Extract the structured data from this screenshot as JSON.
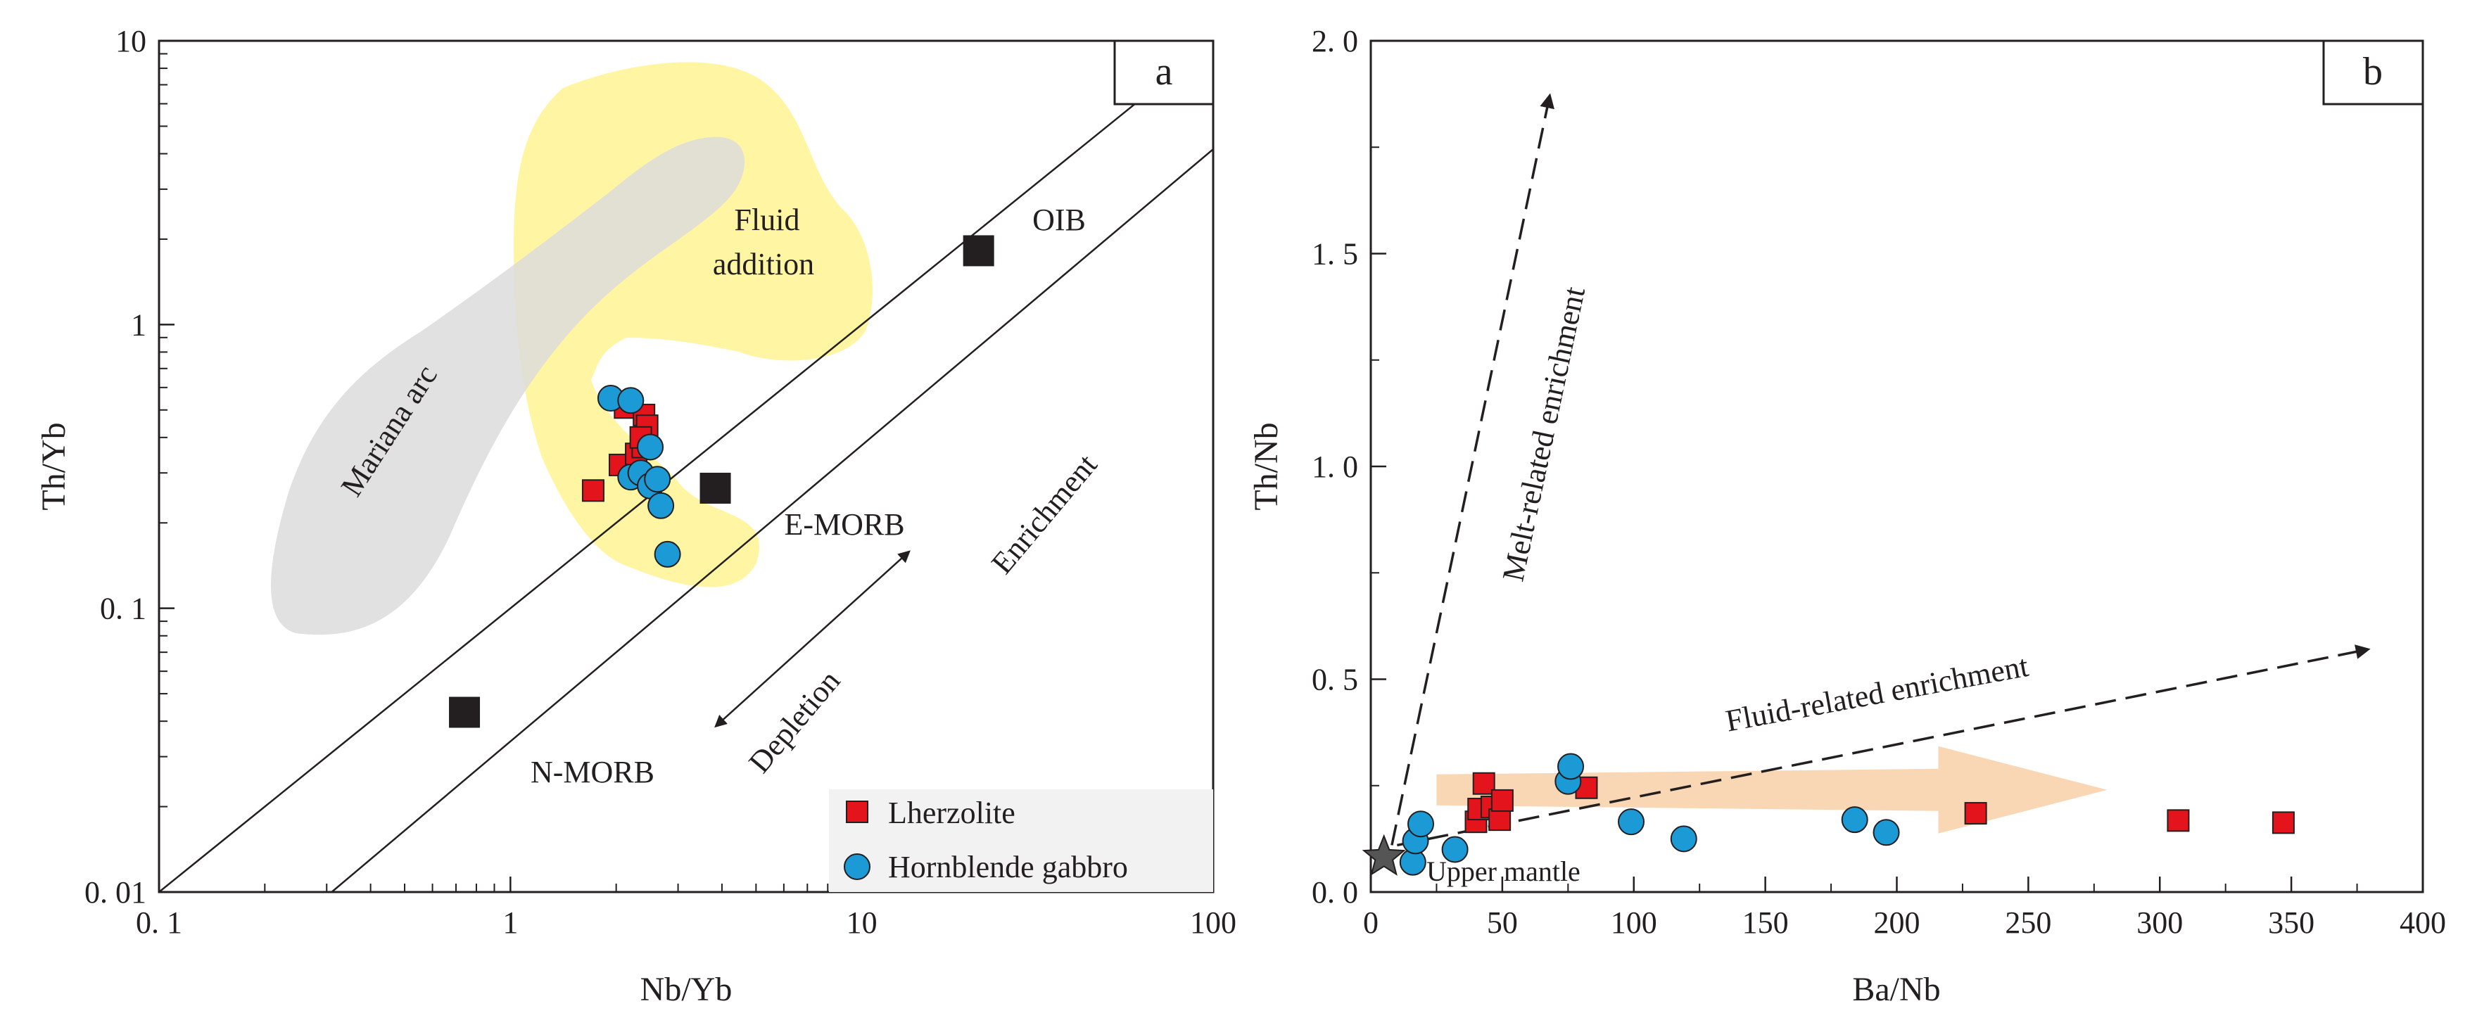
{
  "chart_data": [
    {
      "panel_label": "a",
      "type": "scatter",
      "xscale": "log",
      "yscale": "log",
      "xlabel": "Nb/Yb",
      "ylabel": "Th/Yb",
      "xlim": [
        0.1,
        100
      ],
      "ylim": [
        0.01,
        10
      ],
      "x_tick_labels": [
        "0. 1",
        "1",
        "10",
        "100"
      ],
      "y_tick_labels": [
        "0. 01",
        "0. 1",
        "1",
        "10"
      ],
      "series": [
        {
          "name": "Lherzolite",
          "marker": "square",
          "color": "#e3141b",
          "points": [
            [
              1.72,
              0.26
            ],
            [
              2.05,
              0.32
            ],
            [
              2.12,
              0.51
            ],
            [
              2.28,
              0.35
            ],
            [
              2.38,
              0.37
            ],
            [
              2.4,
              0.48
            ],
            [
              2.45,
              0.44
            ],
            [
              2.35,
              0.4
            ]
          ]
        },
        {
          "name": "Hornblende gabbro",
          "marker": "circle",
          "color": "#1b9ad6",
          "points": [
            [
              1.93,
              0.55
            ],
            [
              2.2,
              0.54
            ],
            [
              2.2,
              0.29
            ],
            [
              2.35,
              0.3
            ],
            [
              2.5,
              0.37
            ],
            [
              2.5,
              0.27
            ],
            [
              2.62,
              0.285
            ],
            [
              2.68,
              0.23
            ],
            [
              2.8,
              0.155
            ]
          ]
        }
      ],
      "references": [
        {
          "label": "OIB",
          "x": 21.5,
          "y": 1.82
        },
        {
          "label": "E-MORB",
          "x": 3.83,
          "y": 0.265
        },
        {
          "label": "N-MORB",
          "x": 0.74,
          "y": 0.043
        }
      ],
      "regions": [
        {
          "label": "Mariana arc",
          "color": "#dcdcdc"
        },
        {
          "label_lines": [
            "Fluid",
            "addition"
          ],
          "color": "#fff5a3"
        }
      ],
      "array_lines": [
        {
          "x1": 0.1,
          "y1": 0.01,
          "x2": 61,
          "y2": 6.1
        },
        {
          "x1": 0.31,
          "y1": 0.01,
          "x2": 100,
          "y2": 4.15
        }
      ],
      "trend_arrow": {
        "x1": 3.85,
        "y1": 0.0385,
        "x2": 13.6,
        "y2": 0.158
      },
      "annotations": [
        "Enrichment",
        "Depletion"
      ],
      "legend_position": "bottom-right"
    },
    {
      "panel_label": "b",
      "type": "scatter",
      "xlabel": "Ba/Nb",
      "ylabel": "Th/Nb",
      "xlim": [
        0,
        400
      ],
      "ylim": [
        0,
        2.0
      ],
      "x_ticks": [
        0,
        50,
        100,
        150,
        200,
        250,
        300,
        350,
        400
      ],
      "x_tick_labels": [
        "0",
        "50",
        "100",
        "150",
        "200",
        "250",
        "300",
        "350",
        "400"
      ],
      "y_tick_labels": [
        "0. 0",
        "0. 5",
        "1. 0",
        "1. 5",
        "2. 0"
      ],
      "series": [
        {
          "name": "Lherzolite",
          "marker": "square",
          "color": "#e3141b",
          "points": [
            [
              40,
              0.165
            ],
            [
              41,
              0.195
            ],
            [
              43,
              0.255
            ],
            [
              46,
              0.2
            ],
            [
              49,
              0.17
            ],
            [
              50,
              0.215
            ],
            [
              82,
              0.245
            ],
            [
              230,
              0.185
            ],
            [
              307,
              0.168
            ],
            [
              347,
              0.163
            ]
          ]
        },
        {
          "name": "Hornblende gabbro",
          "marker": "circle",
          "color": "#1b9ad6",
          "points": [
            [
              16,
              0.07
            ],
            [
              17,
              0.12
            ],
            [
              19,
              0.16
            ],
            [
              32,
              0.1
            ],
            [
              75,
              0.26
            ],
            [
              76,
              0.295
            ],
            [
              99,
              0.165
            ],
            [
              119,
              0.125
            ],
            [
              184,
              0.17
            ],
            [
              196,
              0.14
            ]
          ]
        }
      ],
      "start_point": {
        "label": "Upper mantle",
        "x": 5,
        "y": 0.082
      },
      "trend_arrows": [
        {
          "label": "Melt-related enrichment",
          "x1": 8,
          "y1": 0.11,
          "x2": 68,
          "y2": 1.87
        },
        {
          "label": "Fluid-related enrichment",
          "x1": 10,
          "y1": 0.11,
          "x2": 379,
          "y2": 0.57
        }
      ],
      "wide_arrow": {
        "color": "#f7c99b",
        "x1": 25,
        "x2": 280,
        "y": 0.24
      }
    }
  ]
}
